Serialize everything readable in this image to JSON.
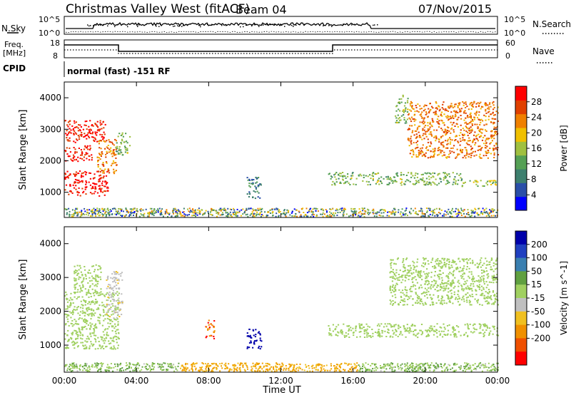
{
  "header": {
    "station": "Christmas Valley West (fitACF)",
    "beam": "Beam 04",
    "date": "07/Nov/2015"
  },
  "summary_rows": {
    "nsky_label": "N.Sky",
    "nsky_ticks": [
      "10^5",
      "10^0"
    ],
    "nsearch_label": "N.Search",
    "nsearch_ticks": [
      "10^5",
      "10^0"
    ],
    "freq_label_line1": "Freq.",
    "freq_label_line2": "[MHz]",
    "freq_ticks": [
      "18",
      "8"
    ],
    "nave_label": "Nave",
    "nave_ticks": [
      "60",
      "0"
    ],
    "cpid_label": "CPID",
    "cpid_text": "normal (fast) -151 RF"
  },
  "colors": {
    "power_scale": [
      "#0000ff",
      "#2a4fa8",
      "#3d7f6e",
      "#55a055",
      "#a0c040",
      "#f0c000",
      "#f08000",
      "#e04000",
      "#ff0000"
    ],
    "velocity_scale": [
      "#0000aa",
      "#2040c0",
      "#3a7fb0",
      "#60a040",
      "#a0d060",
      "#c0c0c0",
      "#f0c020",
      "#f09000",
      "#f05000",
      "#ff0000"
    ]
  },
  "chart_data": [
    {
      "type": "heatmap",
      "name": "power",
      "xlabel": "",
      "ylabel": "Slant Range [km]",
      "y_ticks": [
        "1000",
        "2000",
        "3000",
        "4000"
      ],
      "ylim": [
        200,
        4500
      ],
      "xlim": [
        0,
        24
      ],
      "colorbar_label": "Power [dB]",
      "colorbar_ticks": [
        "4",
        "8",
        "12",
        "16",
        "20",
        "24",
        "28"
      ],
      "clim": [
        0,
        32
      ],
      "regions": [
        {
          "t0": 0.0,
          "t1": 2.4,
          "r0": 900,
          "r1": 1700,
          "v": 30
        },
        {
          "t0": 0.0,
          "t1": 1.5,
          "r0": 2000,
          "r1": 2500,
          "v": 29
        },
        {
          "t0": 0.0,
          "t1": 2.3,
          "r0": 2600,
          "r1": 3300,
          "v": 29
        },
        {
          "t0": 1.8,
          "t1": 2.9,
          "r0": 1600,
          "r1": 2700,
          "v": 24
        },
        {
          "t0": 2.8,
          "t1": 3.6,
          "r0": 2200,
          "r1": 2900,
          "v": 14
        },
        {
          "t0": 10.1,
          "t1": 10.9,
          "r0": 800,
          "r1": 1500,
          "v": 9
        },
        {
          "t0": 14.6,
          "t1": 22.0,
          "r0": 1250,
          "r1": 1650,
          "v": 14
        },
        {
          "t0": 18.3,
          "t1": 19.0,
          "r0": 3200,
          "r1": 4100,
          "v": 14
        },
        {
          "t0": 19.0,
          "t1": 24.0,
          "r0": 2100,
          "r1": 3900,
          "v": 24
        },
        {
          "t0": 22.0,
          "t1": 24.0,
          "r0": 1200,
          "r1": 1400,
          "v": 16
        }
      ]
    },
    {
      "type": "heatmap",
      "name": "velocity",
      "xlabel": "Time UT",
      "ylabel": "Slant Range [km]",
      "x_ticks": [
        "00:00",
        "04:00",
        "08:00",
        "12:00",
        "16:00",
        "20:00",
        "00:00"
      ],
      "y_ticks": [
        "1000",
        "2000",
        "3000",
        "4000"
      ],
      "ylim": [
        200,
        4500
      ],
      "xlim": [
        0,
        24
      ],
      "colorbar_label": "Velocity [m s^-1]",
      "colorbar_ticks": [
        "200",
        "100",
        "50",
        "15",
        "-15",
        "-50",
        "-100",
        "-200"
      ],
      "regions": [
        {
          "t0": 0.0,
          "t1": 3.0,
          "r0": 900,
          "r1": 2600,
          "v": 0
        },
        {
          "t0": 0.5,
          "t1": 2.0,
          "r0": 2600,
          "r1": 3400,
          "v": 0
        },
        {
          "t0": 2.3,
          "t1": 3.2,
          "r0": 1800,
          "r1": 3200,
          "v": -40
        },
        {
          "t0": 7.8,
          "t1": 8.3,
          "r0": 1200,
          "r1": 1800,
          "v": -200
        },
        {
          "t0": 10.1,
          "t1": 10.9,
          "r0": 900,
          "r1": 1500,
          "v": 220
        },
        {
          "t0": 14.6,
          "t1": 24.0,
          "r0": 1250,
          "r1": 1650,
          "v": 0
        },
        {
          "t0": 18.0,
          "t1": 24.0,
          "r0": 2200,
          "r1": 3600,
          "v": 0
        }
      ]
    }
  ]
}
